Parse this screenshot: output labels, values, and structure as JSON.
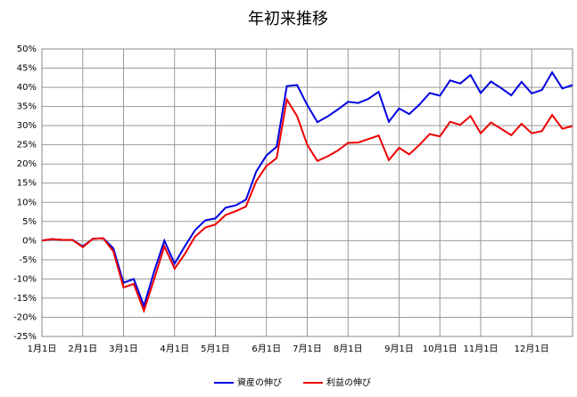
{
  "chart_data": {
    "type": "line",
    "title": "年初来推移",
    "categories": [
      "1月1日",
      null,
      null,
      null,
      "2月1日",
      null,
      null,
      null,
      "3月1日",
      null,
      null,
      null,
      null,
      "4月1日",
      null,
      null,
      null,
      "5月1日",
      null,
      null,
      null,
      null,
      "6月1日",
      null,
      null,
      null,
      "7月1日",
      null,
      null,
      null,
      "8月1日",
      null,
      null,
      null,
      null,
      "9月1日",
      null,
      null,
      null,
      "10月1日",
      null,
      null,
      null,
      "11月1日",
      null,
      null,
      null,
      null,
      "12月1日",
      null,
      null,
      null,
      null
    ],
    "series": [
      {
        "name": "資産の伸び",
        "color": "#0000e0",
        "values": [
          0,
          0.4,
          0.2,
          0.2,
          -1.5,
          0.5,
          0.6,
          -2,
          -11,
          -10,
          -17,
          -8,
          0,
          -6,
          -1.5,
          2.7,
          5.3,
          5.8,
          8.6,
          9.2,
          10.7,
          18,
          22.2,
          24.5,
          40.3,
          40.6,
          35.4,
          30.9,
          32.4,
          34.2,
          36.2,
          35.9,
          37,
          38.8,
          31,
          34.5,
          33,
          35.5,
          38.5,
          37.8,
          41.8,
          41,
          43.2,
          38.5,
          41.5,
          39.8,
          37.9,
          41.4,
          38.4,
          39.3,
          43.9,
          39.7,
          40.6
        ]
      },
      {
        "name": "利益の伸び",
        "color": "#ee0000",
        "values": [
          0,
          0.4,
          0.2,
          0.2,
          -1.7,
          0.5,
          0.6,
          -2.8,
          -12.2,
          -11.3,
          -18.3,
          -10,
          -1.5,
          -7.3,
          -3.5,
          1,
          3.4,
          4.2,
          6.7,
          7.7,
          8.9,
          15.5,
          19.5,
          21.5,
          36.8,
          32.5,
          25,
          20.8,
          22,
          23.5,
          25.5,
          25.6,
          26.5,
          27.4,
          21,
          24.2,
          22.5,
          25,
          27.8,
          27.2,
          31,
          30.2,
          32.5,
          28,
          30.8,
          29.2,
          27.5,
          30.5,
          28,
          28.6,
          32.8,
          29.2,
          29.9
        ]
      }
    ],
    "ylim": [
      -25,
      50
    ],
    "yticks": [
      {
        "value": -25,
        "label": "-25%"
      },
      {
        "value": -20,
        "label": "-20%"
      },
      {
        "value": -15,
        "label": "-15%"
      },
      {
        "value": -10,
        "label": "-10%"
      },
      {
        "value": -5,
        "label": "-5%"
      },
      {
        "value": 0,
        "label": "0%"
      },
      {
        "value": 5,
        "label": "5%"
      },
      {
        "value": 10,
        "label": "10%"
      },
      {
        "value": 15,
        "label": "15%"
      },
      {
        "value": 20,
        "label": "20%"
      },
      {
        "value": 25,
        "label": "25%"
      },
      {
        "value": 30,
        "label": "30%"
      },
      {
        "value": 35,
        "label": "35%"
      },
      {
        "value": 40,
        "label": "40%"
      },
      {
        "value": 45,
        "label": "45%"
      },
      {
        "value": 50,
        "label": "50%"
      }
    ],
    "grid": true,
    "legend": "bottom"
  }
}
